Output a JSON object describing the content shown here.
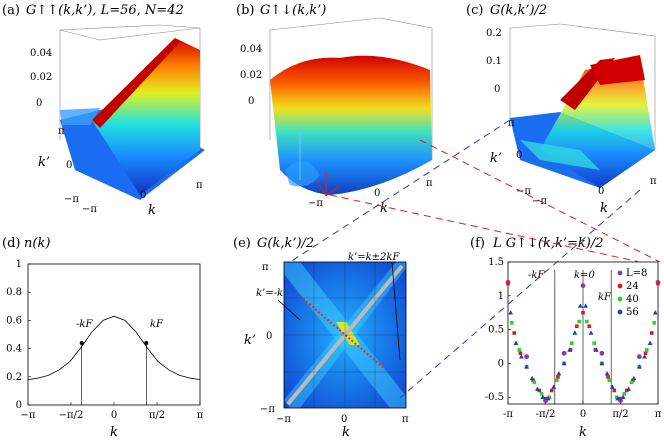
{
  "panels": {
    "a": {
      "label": "(a)",
      "title": "G↑↑(k,k’), L=56, N=42",
      "zticks": [
        "0",
        "0.02",
        "0.04"
      ],
      "kticks": [
        "−π",
        "0",
        "π"
      ],
      "kpticks": [
        "−π",
        "0",
        "π"
      ],
      "xlabel": "k",
      "ylabel": "k’"
    },
    "b": {
      "label": "(b)",
      "title": "G↑↓(k,k’)",
      "zticks": [
        "0",
        "0.02",
        "0.04"
      ],
      "kticks": [
        "−π",
        "0",
        "π"
      ],
      "xlabel": "k"
    },
    "c": {
      "label": "(c)",
      "title": "G(k,k’)/2",
      "zticks": [
        "0",
        "0.1",
        "0.2"
      ],
      "kticks": [
        "−π",
        "0",
        "π"
      ],
      "kpticks": [
        "−π",
        "0",
        "π"
      ],
      "xlabel": "k",
      "ylabel": "k’"
    },
    "d": {
      "label": "(d)",
      "title": "n(k)",
      "annotations": [
        "-kF",
        "kF"
      ]
    },
    "e": {
      "label": "(e)",
      "title": "G(k,k’)/2",
      "annotations": [
        "k’=k±2kF",
        "k’=-k"
      ],
      "xticks": [
        "−π",
        "0",
        "π"
      ],
      "yticks": [
        "−π",
        "0",
        "π"
      ],
      "xlabel": "k",
      "ylabel": "k’"
    },
    "f": {
      "label": "(f)",
      "title": "L G↑↓(k,k’=k)/2",
      "annotations": [
        "-kF",
        "k=0",
        "kF"
      ]
    }
  },
  "chart_data": [
    {
      "type": "line",
      "panel": "d",
      "title": "n(k)",
      "xlabel": "k",
      "ylabel": "",
      "xticks": [
        "−π",
        "−π/2",
        "0",
        "π/2",
        "π"
      ],
      "yticks": [
        "0",
        "0.2",
        "0.4",
        "0.6",
        "0.8",
        "1"
      ],
      "xlim": [
        -3.1416,
        3.1416
      ],
      "ylim": [
        0,
        1
      ],
      "series": [
        {
          "x": [
            -3.14,
            -2.8,
            -2.4,
            -2.0,
            -1.6,
            -1.2,
            -0.8,
            -0.4,
            0,
            0.4,
            0.8,
            1.2,
            1.6,
            2.0,
            2.4,
            2.8,
            3.14
          ],
          "values": [
            0.18,
            0.19,
            0.21,
            0.25,
            0.31,
            0.41,
            0.52,
            0.6,
            0.63,
            0.6,
            0.52,
            0.41,
            0.31,
            0.25,
            0.21,
            0.19,
            0.18
          ]
        }
      ],
      "markers": {
        "x": [
          -1.18,
          1.18
        ],
        "values": [
          0.44,
          0.44
        ]
      }
    },
    {
      "type": "scatter",
      "panel": "f",
      "title": "L G↑↓(k,k’=k)/2",
      "xlabel": "k",
      "ylabel": "",
      "xticks": [
        "-π",
        "-π/2",
        "0",
        "π/2",
        "π"
      ],
      "yticks": [
        "-0.5",
        "0",
        "0.5",
        "1",
        "1.5"
      ],
      "xlim": [
        -3.1416,
        3.1416
      ],
      "ylim": [
        -0.6,
        1.5
      ],
      "legend_position": "top-right",
      "series": [
        {
          "name": "L=8",
          "color": "#7b3fb8",
          "x": [
            -3.14,
            -2.36,
            -1.57,
            -0.79,
            0,
            0.79,
            1.57,
            2.36,
            3.14
          ],
          "values": [
            1.2,
            0.1,
            -0.55,
            0.15,
            1.15,
            0.15,
            -0.55,
            0.1,
            1.2
          ]
        },
        {
          "name": "24",
          "color": "#e01818",
          "x": [
            -3.14,
            -2.88,
            -2.62,
            -2.36,
            -2.09,
            -1.83,
            -1.57,
            -1.31,
            -1.05,
            -0.79,
            -0.52,
            -0.26,
            0,
            0.26,
            0.52,
            0.79,
            1.05,
            1.31,
            1.57,
            1.83,
            2.09,
            2.36,
            2.62,
            2.88,
            3.14
          ],
          "values": [
            1.18,
            0.45,
            0.15,
            -0.05,
            -0.25,
            -0.4,
            -0.52,
            -0.4,
            -0.2,
            0.0,
            0.2,
            0.55,
            0.75,
            0.55,
            0.2,
            0.0,
            -0.2,
            -0.4,
            -0.52,
            -0.4,
            -0.25,
            -0.05,
            0.15,
            0.45,
            1.18
          ]
        },
        {
          "name": "40",
          "color": "#2fcf2f",
          "x": [
            -2.98,
            -2.67,
            -2.36,
            -2.04,
            -1.73,
            -1.41,
            -1.1,
            -0.79,
            -0.47,
            -0.16,
            0.16,
            0.47,
            0.79,
            1.1,
            1.41,
            1.73,
            2.04,
            2.36,
            2.67,
            2.98
          ],
          "values": [
            0.6,
            0.2,
            -0.05,
            -0.28,
            -0.45,
            -0.5,
            -0.25,
            0.0,
            0.3,
            0.62,
            0.62,
            0.3,
            0.0,
            -0.25,
            -0.5,
            -0.45,
            -0.28,
            -0.05,
            0.2,
            0.6
          ]
        },
        {
          "name": "56",
          "color": "#2040c0",
          "x": [
            -3.03,
            -2.81,
            -2.58,
            -2.36,
            -2.13,
            -1.91,
            -1.68,
            -1.46,
            -1.23,
            -1.01,
            -0.79,
            -0.56,
            -0.34,
            -0.11,
            0.11,
            0.34,
            0.56,
            0.79,
            1.01,
            1.23,
            1.46,
            1.68,
            1.91,
            2.13,
            2.36,
            2.58,
            2.81,
            3.03
          ],
          "values": [
            0.75,
            0.3,
            0.1,
            -0.05,
            -0.22,
            -0.38,
            -0.5,
            -0.52,
            -0.35,
            -0.15,
            0.0,
            0.2,
            0.45,
            0.85,
            0.85,
            0.45,
            0.2,
            0.0,
            -0.15,
            -0.35,
            -0.52,
            -0.5,
            -0.38,
            -0.22,
            -0.05,
            0.1,
            0.3,
            0.75
          ]
        }
      ]
    }
  ]
}
